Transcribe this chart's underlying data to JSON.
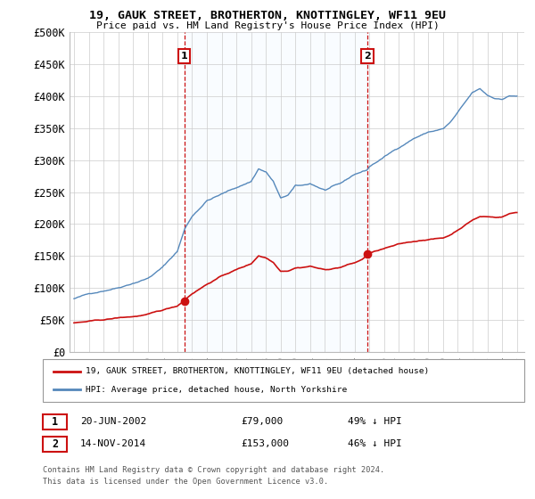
{
  "title_line1": "19, GAUK STREET, BROTHERTON, KNOTTINGLEY, WF11 9EU",
  "title_line2": "Price paid vs. HM Land Registry's House Price Index (HPI)",
  "ylabel_ticks": [
    "£0",
    "£50K",
    "£100K",
    "£150K",
    "£200K",
    "£250K",
    "£300K",
    "£350K",
    "£400K",
    "£450K",
    "£500K"
  ],
  "ytick_values": [
    0,
    50000,
    100000,
    150000,
    200000,
    250000,
    300000,
    350000,
    400000,
    450000,
    500000
  ],
  "xlim": [
    1994.7,
    2025.5
  ],
  "ylim": [
    0,
    500000
  ],
  "hpi_color": "#5588bb",
  "price_color": "#cc1111",
  "shade_color": "#ddeeff",
  "marker1_x": 2002.47,
  "marker1_y": 79000,
  "marker2_x": 2014.87,
  "marker2_y": 153000,
  "legend_line1": "19, GAUK STREET, BROTHERTON, KNOTTINGLEY, WF11 9EU (detached house)",
  "legend_line2": "HPI: Average price, detached house, North Yorkshire",
  "annotation1_date": "20-JUN-2002",
  "annotation1_price": "£79,000",
  "annotation1_pct": "49% ↓ HPI",
  "annotation2_date": "14-NOV-2014",
  "annotation2_price": "£153,000",
  "annotation2_pct": "46% ↓ HPI",
  "footnote1": "Contains HM Land Registry data © Crown copyright and database right 2024.",
  "footnote2": "This data is licensed under the Open Government Licence v3.0.",
  "bg_color": "#ffffff",
  "grid_color": "#cccccc"
}
